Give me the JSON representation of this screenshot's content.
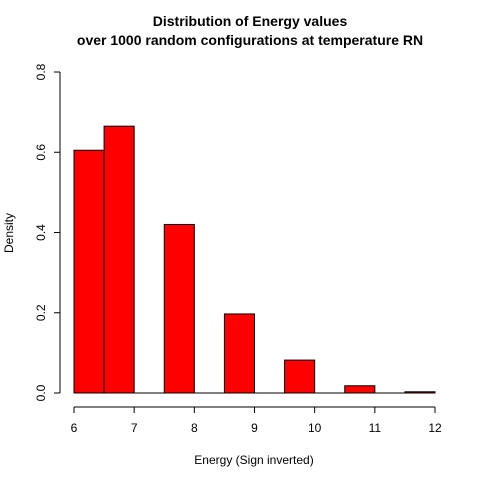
{
  "chart_data": {
    "type": "bar",
    "title": [
      "Distribution of Energy values",
      "over 1000 random configurations at temperature RN"
    ],
    "xlabel": "Energy (Sign inverted)",
    "ylabel": "Density",
    "xlim": [
      6,
      12
    ],
    "ylim": [
      0,
      0.8
    ],
    "x_ticks": [
      "6",
      "7",
      "8",
      "9",
      "10",
      "11",
      "12"
    ],
    "y_ticks": [
      "0.0",
      "0.2",
      "0.4",
      "0.6",
      "0.8"
    ],
    "bins": [
      {
        "x0": 6.0,
        "x1": 6.5,
        "density": 0.605
      },
      {
        "x0": 6.5,
        "x1": 7.0,
        "density": 0.665
      },
      {
        "x0": 7.0,
        "x1": 7.5,
        "density": 0.0
      },
      {
        "x0": 7.5,
        "x1": 8.0,
        "density": 0.42
      },
      {
        "x0": 8.0,
        "x1": 8.5,
        "density": 0.0
      },
      {
        "x0": 8.5,
        "x1": 9.0,
        "density": 0.197
      },
      {
        "x0": 9.0,
        "x1": 9.5,
        "density": 0.0
      },
      {
        "x0": 9.5,
        "x1": 10.0,
        "density": 0.082
      },
      {
        "x0": 10.0,
        "x1": 10.5,
        "density": 0.0
      },
      {
        "x0": 10.5,
        "x1": 11.0,
        "density": 0.018
      },
      {
        "x0": 11.0,
        "x1": 11.5,
        "density": 0.0
      },
      {
        "x0": 11.5,
        "x1": 12.0,
        "density": 0.003
      }
    ],
    "bar_color": "#ff0000",
    "grid": false,
    "legend": "none"
  }
}
